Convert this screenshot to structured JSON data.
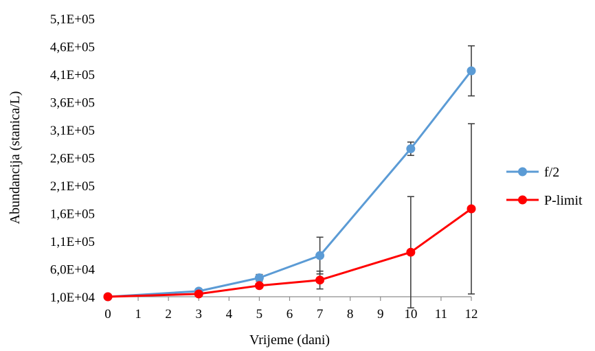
{
  "chart_data": {
    "type": "line",
    "title": "",
    "xlabel": "Vrijeme (dani)",
    "ylabel": "Abundancija  (stanica/L)",
    "x_ticks": [
      "0",
      "1",
      "2",
      "3",
      "4",
      "5",
      "6",
      "7",
      "8",
      "9",
      "10",
      "11",
      "12"
    ],
    "y_ticks": [
      "1,0E+04",
      "6,0E+04",
      "1,1E+05",
      "1,6E+05",
      "2,1E+05",
      "2,6E+05",
      "3,1E+05",
      "3,6E+05",
      "4,1E+05",
      "4,6E+05",
      "5,1E+05"
    ],
    "xlim": [
      0,
      12
    ],
    "ylim": [
      10000,
      510000
    ],
    "grid": false,
    "legend_position": "right",
    "series": [
      {
        "name": "f/2",
        "color": "#5b9bd5",
        "points": [
          {
            "x": 0,
            "y": 10000,
            "err": 0
          },
          {
            "x": 3,
            "y": 20000,
            "err": 2000
          },
          {
            "x": 5,
            "y": 44000,
            "err": 6000
          },
          {
            "x": 7,
            "y": 84000,
            "err": 33000
          },
          {
            "x": 10,
            "y": 276000,
            "err": 12000
          },
          {
            "x": 12,
            "y": 416000,
            "err": 45000
          }
        ]
      },
      {
        "name": "P-limit",
        "color": "#ff0000",
        "points": [
          {
            "x": 0,
            "y": 10000,
            "err": 0
          },
          {
            "x": 3,
            "y": 15000,
            "err": 2000
          },
          {
            "x": 5,
            "y": 30000,
            "err": 3000
          },
          {
            "x": 7,
            "y": 40000,
            "err": 16000
          },
          {
            "x": 10,
            "y": 90000,
            "err": 100000
          },
          {
            "x": 12,
            "y": 168000,
            "err": 153000
          }
        ]
      }
    ]
  }
}
